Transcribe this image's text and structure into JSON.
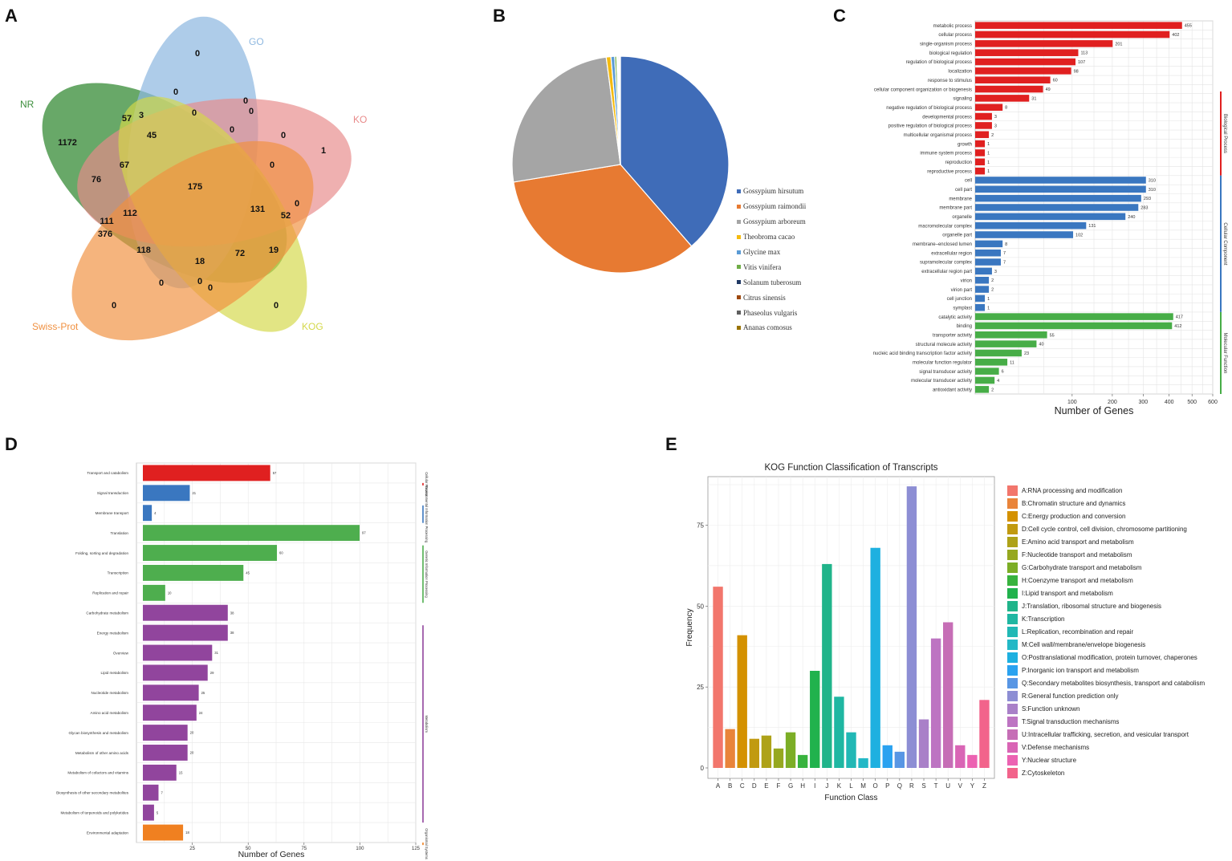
{
  "panels": {
    "a": "A",
    "b": "B",
    "c": "C",
    "d": "D",
    "e": "E"
  },
  "colors": {
    "bio": "#e02020",
    "cell": "#3a77c0",
    "mol": "#47ad47",
    "d_red": "#e02020",
    "d_blue": "#3a77c0",
    "d_green": "#4eae4e",
    "d_purple": "#91459d",
    "d_orange": "#f08020"
  },
  "venn": {
    "sets": [
      {
        "name": "NR",
        "color": "#3d8f3d"
      },
      {
        "name": "GO",
        "color": "#8fb8e0"
      },
      {
        "name": "KO",
        "color": "#e88a8a"
      },
      {
        "name": "KOG",
        "color": "#d4d84a"
      },
      {
        "name": "Swiss-Prot",
        "color": "#f09040"
      }
    ],
    "counts": [
      "0",
      "0",
      "0",
      "0",
      "1",
      "57",
      "3",
      "0",
      "45",
      "0",
      "0",
      "1172",
      "67",
      "0",
      "76",
      "175",
      "0",
      "131",
      "52",
      "0",
      "112",
      "111",
      "376",
      "118",
      "18",
      "72",
      "19",
      "0",
      "0",
      "0",
      "0",
      "0"
    ]
  },
  "chart_data": [
    {
      "type": "pie",
      "panel": "B",
      "slices": [
        {
          "label": "Gossypium hirsutum",
          "value": 38.6,
          "color": "#3f6cb8"
        },
        {
          "label": "Gossypium raimondii",
          "value": 33.8,
          "color": "#e77a32"
        },
        {
          "label": "Gossypium arboreum",
          "value": 25.5,
          "color": "#a5a5a5"
        },
        {
          "label": "Theobroma cacao",
          "value": 0.7,
          "color": "#f5bb10"
        },
        {
          "label": "Glycine max",
          "value": 0.55,
          "color": "#5a9bd5"
        },
        {
          "label": "Vitis vinifera",
          "value": 0.3,
          "color": "#6fad47"
        },
        {
          "label": "Solanum tuberosum",
          "value": 0.15,
          "color": "#203864"
        },
        {
          "label": "Citrus sinensis",
          "value": 0.15,
          "color": "#9e480e"
        },
        {
          "label": "Phaseolus vulgaris",
          "value": 0.15,
          "color": "#5e5e5e"
        },
        {
          "label": "Ananas comosus",
          "value": 0.1,
          "color": "#997300"
        }
      ]
    },
    {
      "type": "bar",
      "panel": "C",
      "orientation": "horizontal",
      "xlabel": "Number of Genes",
      "xticks": [
        "100",
        "200",
        "300",
        "400",
        "500",
        "600"
      ],
      "categories": [
        "metabolic process",
        "cellular process",
        "single-organism process",
        "biological regulation",
        "regulation of biological process",
        "localization",
        "response to stimulus",
        "cellular component organization or biogenesis",
        "signaling",
        "negative regulation of biological process",
        "developmental process",
        "positive regulation of biological process",
        "multicellular organismal process",
        "growth",
        "immune system process",
        "reproduction",
        "reproductive process",
        "cell",
        "cell part",
        "membrane",
        "membrane part",
        "organelle",
        "macromolecular complex",
        "organelle part",
        "membrane–enclosed lumen",
        "extracellular region",
        "supramolecular complex",
        "extracellular region part",
        "virion",
        "virion part",
        "cell junction",
        "symplast",
        "catalytic activity",
        "binding",
        "transporter activity",
        "structural molecule activity",
        "nucleic acid binding transcription factor activity",
        "molecular function regulator",
        "signal transducer activity",
        "molecular transducer activity",
        "antioxidant activity"
      ],
      "values": [
        455,
        402,
        201,
        113,
        107,
        98,
        60,
        49,
        31,
        8,
        3,
        3,
        2,
        1,
        1,
        1,
        1,
        310,
        310,
        293,
        283,
        240,
        131,
        102,
        8,
        7,
        7,
        3,
        2,
        2,
        1,
        1,
        417,
        412,
        55,
        40,
        23,
        11,
        6,
        4,
        2
      ],
      "groups": [
        "bio",
        "bio",
        "bio",
        "bio",
        "bio",
        "bio",
        "bio",
        "bio",
        "bio",
        "bio",
        "bio",
        "bio",
        "bio",
        "bio",
        "bio",
        "bio",
        "bio",
        "cell",
        "cell",
        "cell",
        "cell",
        "cell",
        "cell",
        "cell",
        "cell",
        "cell",
        "cell",
        "cell",
        "cell",
        "cell",
        "cell",
        "cell",
        "mol",
        "mol",
        "mol",
        "mol",
        "mol",
        "mol",
        "mol",
        "mol",
        "mol"
      ],
      "group_labels": {
        "bio": "Biological Process",
        "cell": "Cellular Component",
        "mol": "Molecular Function"
      }
    },
    {
      "type": "bar",
      "panel": "D",
      "orientation": "horizontal",
      "xlabel": "Number of Genes",
      "xticks": [
        "25",
        "50",
        "75",
        "100",
        "125"
      ],
      "xlim": [
        0,
        125
      ],
      "categories": [
        "Transport and catabolism",
        "Signal transduction",
        "Membrane transport",
        "Translation",
        "Folding, sorting and degradation",
        "Transcription",
        "Replication and repair",
        "Carbohydrate metabolism",
        "Energy metabolism",
        "Overview",
        "Lipid metabolism",
        "Nucleotide metabolism",
        "Amino acid metabolism",
        "Glycan biosynthesis and metabolism",
        "Metabolism of other amino acids",
        "Metabolism of cofactors and vitamins",
        "Biosynthesis of other secondary metabolites",
        "Metabolism of terpenoids and polyketides",
        "Environmental adaptation"
      ],
      "values": [
        57,
        21,
        4,
        97,
        60,
        45,
        10,
        38,
        38,
        31,
        29,
        25,
        24,
        20,
        20,
        15,
        7,
        5,
        18
      ],
      "groups": [
        "red",
        "blue",
        "blue",
        "green",
        "green",
        "green",
        "green",
        "purple",
        "purple",
        "purple",
        "purple",
        "purple",
        "purple",
        "purple",
        "purple",
        "purple",
        "purple",
        "purple",
        "orange"
      ],
      "group_labels": {
        "red": "Cellular Process",
        "blue": "Environmental Information Processing",
        "green": "Genetic Information Processing",
        "purple": "Metabolism",
        "orange": "Organismal Systems"
      }
    },
    {
      "type": "bar",
      "panel": "E",
      "title": "KOG Function Classification of Transcripts",
      "xlabel": "Function Class",
      "ylabel": "Frequency",
      "ylim": [
        0,
        90
      ],
      "yticks": [
        "0",
        "25",
        "50",
        "75"
      ],
      "categories": [
        "A",
        "B",
        "C",
        "D",
        "E",
        "F",
        "G",
        "H",
        "I",
        "J",
        "K",
        "L",
        "M",
        "O",
        "P",
        "Q",
        "R",
        "S",
        "T",
        "U",
        "V",
        "Y",
        "Z"
      ],
      "values": [
        56,
        12,
        41,
        9,
        10,
        6,
        11,
        4,
        30,
        63,
        22,
        11,
        3,
        68,
        7,
        5,
        87,
        15,
        40,
        45,
        7,
        4,
        21
      ],
      "colors": [
        "#f2766c",
        "#e9843a",
        "#d49100",
        "#c19a10",
        "#aea218",
        "#96a81f",
        "#7cae26",
        "#38b33e",
        "#21b24d",
        "#20b48a",
        "#1fb7a2",
        "#21b8b5",
        "#23b8c6",
        "#1eb0e0",
        "#2aa2f0",
        "#5896e4",
        "#8d8ed4",
        "#a980c8",
        "#bd74c2",
        "#c66eb6",
        "#d965b5",
        "#ec62b2",
        "#f2638b"
      ],
      "legend": [
        "A:RNA processing and modification",
        "B:Chromatin structure and dynamics",
        "C:Energy production and conversion",
        "D:Cell cycle control, cell division, chromosome partitioning",
        "E:Amino acid transport and metabolism",
        "F:Nucleotide transport and metabolism",
        "G:Carbohydrate transport and metabolism",
        "H:Coenzyme transport and metabolism",
        "I:Lipid transport and metabolism",
        "J:Translation, ribosomal structure and biogenesis",
        "K:Transcription",
        "L:Replication, recombination and repair",
        "M:Cell wall/membrane/envelope biogenesis",
        "O:Posttranslational modification, protein turnover, chaperones",
        "P:Inorganic ion transport and metabolism",
        "Q:Secondary metabolites biosynthesis, transport and catabolism",
        "R:General function prediction only",
        "S:Function unknown",
        "T:Signal transduction mechanisms",
        "U:Intracellular trafficking, secretion, and vesicular transport",
        "V:Defense mechanisms",
        "Y:Nuclear structure",
        "Z:Cytoskeleton"
      ]
    }
  ]
}
